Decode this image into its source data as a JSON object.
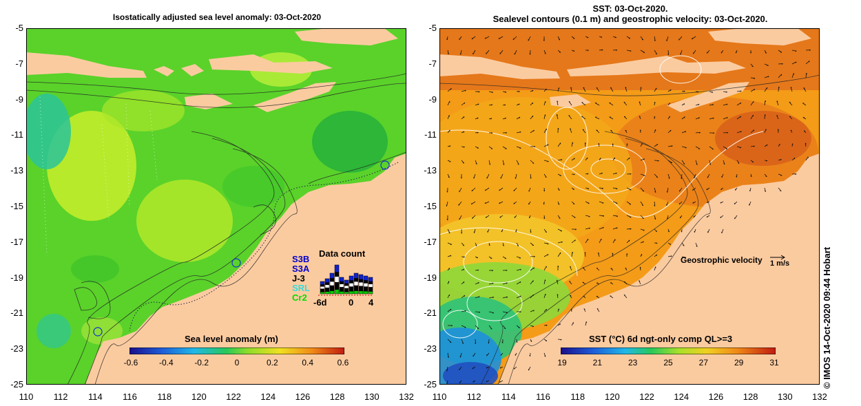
{
  "left_map": {
    "title": "Isostatically adjusted sea level anomaly: 03-Oct-2020",
    "colorbar": {
      "label": "Sea level anomaly (m)",
      "ticks": [
        "-0.6",
        "-0.4",
        "-0.2",
        "0",
        "0.2",
        "0.4",
        "0.6"
      ],
      "range": [
        -0.6,
        0.6
      ]
    },
    "data_count": {
      "label": "Data count",
      "satellites": [
        "S3B",
        "S3A",
        "J-3",
        "SRL",
        "Cr2"
      ],
      "x_ticks": [
        "-6d",
        "0",
        "4"
      ],
      "satellite_colors": [
        "#0000cc",
        "#0000cc",
        "#000000",
        "#33dddd",
        "#00dd00"
      ]
    }
  },
  "right_map": {
    "title_line1": "SST: 03-Oct-2020.",
    "title_line2": "Sealevel contours (0.1 m) and geostrophic velocity: 03-Oct-2020.",
    "colorbar": {
      "label": "SST (°C) 6d ngt-only comp QL>=3",
      "ticks": [
        "19",
        "21",
        "23",
        "25",
        "27",
        "29",
        "31"
      ],
      "range": [
        19,
        31
      ]
    },
    "velocity_legend": {
      "label": "Geostrophic velocity",
      "scale": "1 m/s"
    }
  },
  "axes": {
    "lat_ticks": [
      "-5",
      "-7",
      "-9",
      "-11",
      "-13",
      "-15",
      "-17",
      "-19",
      "-21",
      "-23",
      "-25"
    ],
    "lon_ticks": [
      "110",
      "112",
      "114",
      "116",
      "118",
      "120",
      "122",
      "124",
      "126",
      "128",
      "130",
      "132"
    ],
    "lat_range": [
      -25,
      -5
    ],
    "lon_range": [
      110,
      132
    ]
  },
  "credit": "© IMOS 14-Oct-2020 09:44 Hobart",
  "colors": {
    "land": "#fbcba0",
    "sla_base": "#5ad22a",
    "sst_base": "#f49b18"
  }
}
